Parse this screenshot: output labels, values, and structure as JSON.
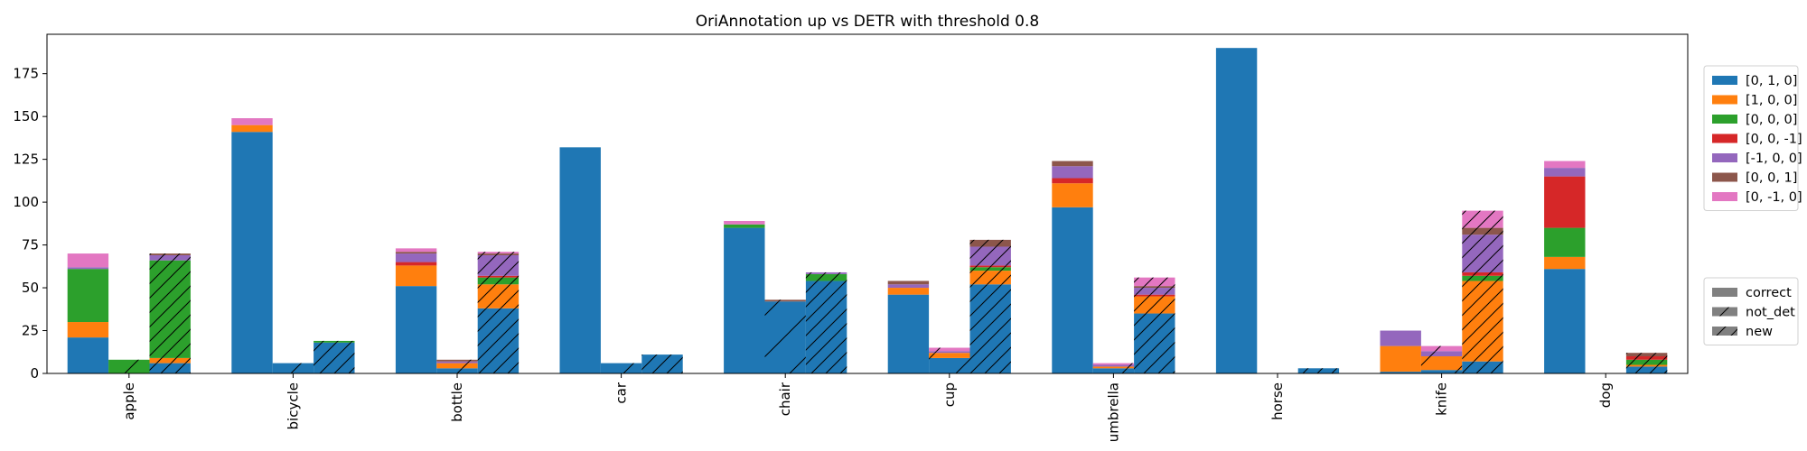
{
  "chart_data": {
    "type": "bar",
    "title": "OriAnnotation up vs DETR with threshold 0.8",
    "xlabel": "",
    "ylabel": "",
    "ylim": [
      0,
      198
    ],
    "yticks": [
      0,
      25,
      50,
      75,
      100,
      125,
      150,
      175
    ],
    "categories": [
      "apple",
      "bicycle",
      "bottle",
      "car",
      "chair",
      "cup",
      "umbrella",
      "horse",
      "knife",
      "dog"
    ],
    "series": [
      {
        "name": "[0, 1, 0]",
        "color": "#1f77b4"
      },
      {
        "name": "[1, 0, 0]",
        "color": "#ff7f0e"
      },
      {
        "name": "[0, 0, 0]",
        "color": "#2ca02c"
      },
      {
        "name": "[0, 0, -1]",
        "color": "#d62728"
      },
      {
        "name": "[-1, 0, 0]",
        "color": "#9467bd"
      },
      {
        "name": "[0, 0, 1]",
        "color": "#8c564b"
      },
      {
        "name": "[0, -1, 0]",
        "color": "#e377c2"
      }
    ],
    "groups": [
      {
        "name": "correct",
        "hatch": "none"
      },
      {
        "name": "not_det",
        "hatch": "sparse-diagonal"
      },
      {
        "name": "new",
        "hatch": "diagonal"
      }
    ],
    "stacks": {
      "correct": [
        [
          21,
          9,
          31,
          0,
          1,
          0,
          8
        ],
        [
          141,
          4,
          0,
          0,
          0,
          0,
          4
        ],
        [
          51,
          12,
          0,
          2,
          5,
          1,
          2
        ],
        [
          132,
          0,
          0,
          0,
          0,
          0,
          0
        ],
        [
          85,
          0,
          2,
          0,
          0,
          0,
          2
        ],
        [
          46,
          4,
          0,
          0,
          2,
          2,
          0
        ],
        [
          97,
          14,
          0,
          3,
          7,
          3,
          0
        ],
        [
          190,
          0,
          0,
          0,
          0,
          0,
          0
        ],
        [
          1,
          15,
          0,
          0,
          9,
          0,
          0
        ],
        [
          61,
          7,
          17,
          30,
          5,
          0,
          4
        ]
      ],
      "not_det": [
        [
          0,
          0,
          8,
          0,
          0,
          0,
          0
        ],
        [
          6,
          0,
          0,
          0,
          0,
          0,
          0
        ],
        [
          3,
          3,
          0,
          0,
          1,
          1,
          0
        ],
        [
          6,
          0,
          0,
          0,
          0,
          0,
          0
        ],
        [
          42,
          0,
          0,
          0,
          0,
          1,
          0
        ],
        [
          9,
          3,
          0,
          0,
          1,
          0,
          2
        ],
        [
          3,
          1,
          0,
          0,
          1,
          0,
          1
        ],
        [
          0,
          0,
          0,
          0,
          0,
          0,
          0
        ],
        [
          2,
          8,
          0,
          0,
          3,
          0,
          3
        ],
        [
          0,
          0,
          0,
          0,
          0,
          0,
          0
        ]
      ],
      "new": [
        [
          6,
          3,
          57,
          0,
          3,
          1,
          0
        ],
        [
          18,
          0,
          1,
          0,
          0,
          0,
          0
        ],
        [
          38,
          14,
          4,
          1,
          12,
          1,
          1
        ],
        [
          11,
          0,
          0,
          0,
          0,
          0,
          0
        ],
        [
          54,
          0,
          4,
          0,
          1,
          0,
          0
        ],
        [
          52,
          8,
          2,
          1,
          11,
          4,
          0
        ],
        [
          35,
          10,
          0,
          1,
          4,
          1,
          5
        ],
        [
          3,
          0,
          0,
          0,
          0,
          0,
          0
        ],
        [
          7,
          47,
          3,
          2,
          22,
          4,
          10
        ],
        [
          4,
          1,
          3,
          2,
          0,
          2,
          0
        ]
      ]
    }
  }
}
